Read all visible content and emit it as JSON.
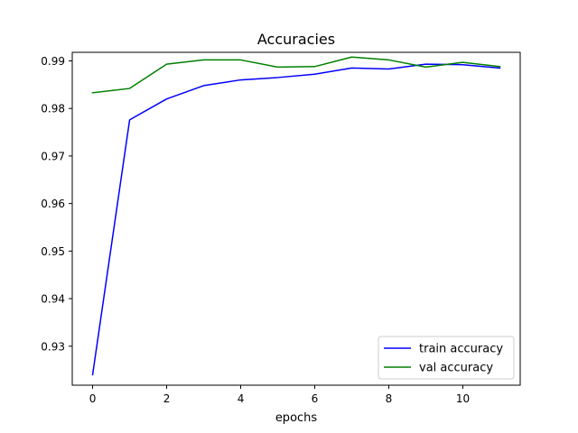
{
  "chart_data": {
    "type": "line",
    "title": "Accuracies",
    "xlabel": "epochs",
    "ylabel": "",
    "x": [
      0,
      1,
      2,
      3,
      4,
      5,
      6,
      7,
      8,
      9,
      10,
      11
    ],
    "xlim": [
      -0.55,
      11.55
    ],
    "ylim": [
      0.9218,
      0.9918
    ],
    "xticks": [
      0,
      2,
      4,
      6,
      8,
      10
    ],
    "yticks": [
      0.93,
      0.94,
      0.95,
      0.96,
      0.97,
      0.98,
      0.99
    ],
    "legend_position": "lower-right",
    "grid": false,
    "series": [
      {
        "name": "train accuracy",
        "color": "#0000ff",
        "values": [
          0.924,
          0.9776,
          0.982,
          0.9848,
          0.986,
          0.9865,
          0.9872,
          0.9885,
          0.9883,
          0.9893,
          0.9892,
          0.9885
        ]
      },
      {
        "name": "val accuracy",
        "color": "#008000",
        "values": [
          0.9833,
          0.9842,
          0.9893,
          0.9902,
          0.9902,
          0.9887,
          0.9888,
          0.9908,
          0.9902,
          0.9887,
          0.9897,
          0.9888
        ]
      }
    ]
  }
}
